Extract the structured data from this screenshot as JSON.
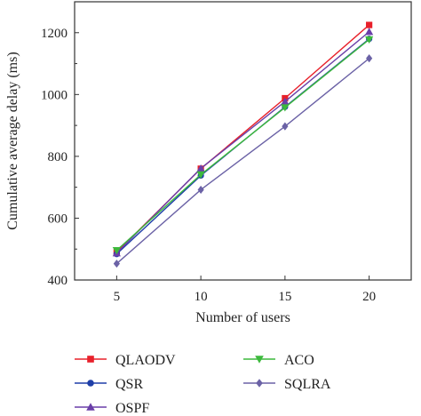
{
  "chart_data": {
    "type": "line",
    "xlabel": "Number of users",
    "ylabel": "Cumulative average delay (ms)",
    "x": [
      5,
      10,
      15,
      20
    ],
    "xlim": [
      2.5,
      22.5
    ],
    "ylim": [
      400,
      1300
    ],
    "xticks": [
      "5",
      "10",
      "15",
      "20"
    ],
    "yticks": [
      "400",
      "600",
      "800",
      "1000",
      "1200"
    ],
    "grid": false,
    "legend_position": "bottom",
    "series": [
      {
        "name": "QLAODV",
        "color": "#e8202a",
        "marker": "square",
        "values": [
          490,
          760,
          988,
          1225
        ]
      },
      {
        "name": "QSR",
        "color": "#1f3fa8",
        "marker": "circle",
        "values": [
          484,
          738,
          960,
          1180
        ]
      },
      {
        "name": "OSPF",
        "color": "#6a3fa8",
        "marker": "triangle-up",
        "values": [
          487,
          761,
          977,
          1203
        ]
      },
      {
        "name": "ACO",
        "color": "#3cb93c",
        "marker": "triangle-down",
        "values": [
          496,
          741,
          958,
          1178
        ]
      },
      {
        "name": "SQLRA",
        "color": "#6b62a6",
        "marker": "diamond",
        "values": [
          453,
          692,
          897,
          1117
        ]
      }
    ]
  }
}
